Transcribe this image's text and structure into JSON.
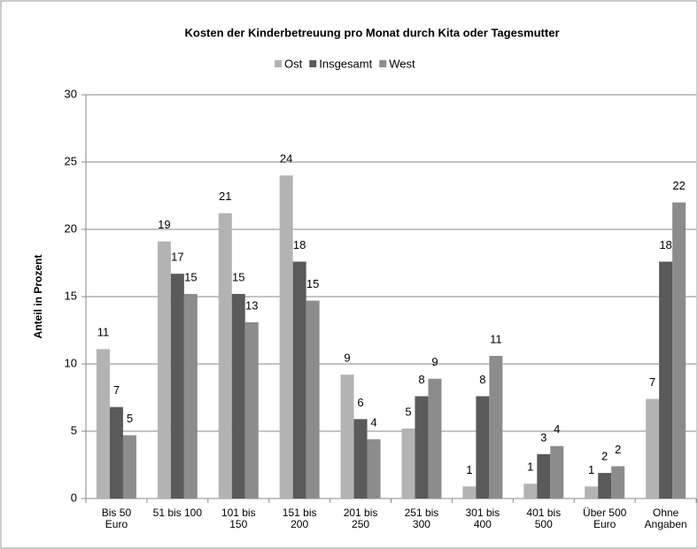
{
  "chart_data": {
    "type": "bar",
    "title": "Kosten der Kinderbetreuung pro Monat durch Kita oder Tagesmutter",
    "y_label": "Anteil in Prozent",
    "categories": [
      [
        "Bis 50",
        "Euro"
      ],
      [
        "51 bis 100"
      ],
      [
        "101 bis",
        "150"
      ],
      [
        "151 bis",
        "200"
      ],
      [
        "201 bis",
        "250"
      ],
      [
        "251 bis",
        "300"
      ],
      [
        "301 bis",
        "400"
      ],
      [
        "401 bis",
        "500"
      ],
      [
        "Über 500",
        "Euro"
      ],
      [
        "Ohne",
        "Angaben"
      ]
    ],
    "series": [
      {
        "name": "Ost",
        "color": "#b3b3b3",
        "values": [
          11.1,
          19.1,
          21.2,
          24.0,
          9.2,
          5.2,
          0.9,
          1.1,
          0.9,
          7.4
        ],
        "value_labels": [
          "11",
          "19",
          "21",
          "24",
          "9",
          "5",
          "1",
          "1",
          "1",
          "7"
        ]
      },
      {
        "name": "Insgesamt",
        "color": "#5a5a5a",
        "values": [
          6.8,
          16.7,
          15.2,
          17.6,
          5.9,
          7.6,
          7.6,
          3.3,
          1.9,
          17.6
        ],
        "value_labels": [
          "7",
          "17",
          "15",
          "18",
          "6",
          "8",
          "8",
          "3",
          "2",
          "18"
        ]
      },
      {
        "name": "West",
        "color": "#8c8c8c",
        "values": [
          4.7,
          15.2,
          13.1,
          14.7,
          4.4,
          8.9,
          10.6,
          3.9,
          2.4,
          22.0
        ],
        "value_labels": [
          "5",
          "15",
          "13",
          "15",
          "4",
          "9",
          "11",
          "4",
          "2",
          "22"
        ]
      }
    ],
    "ylim": [
      0,
      30
    ],
    "yticks": [
      0,
      5,
      10,
      15,
      20,
      25,
      30
    ],
    "grid": true,
    "legend": "top"
  }
}
